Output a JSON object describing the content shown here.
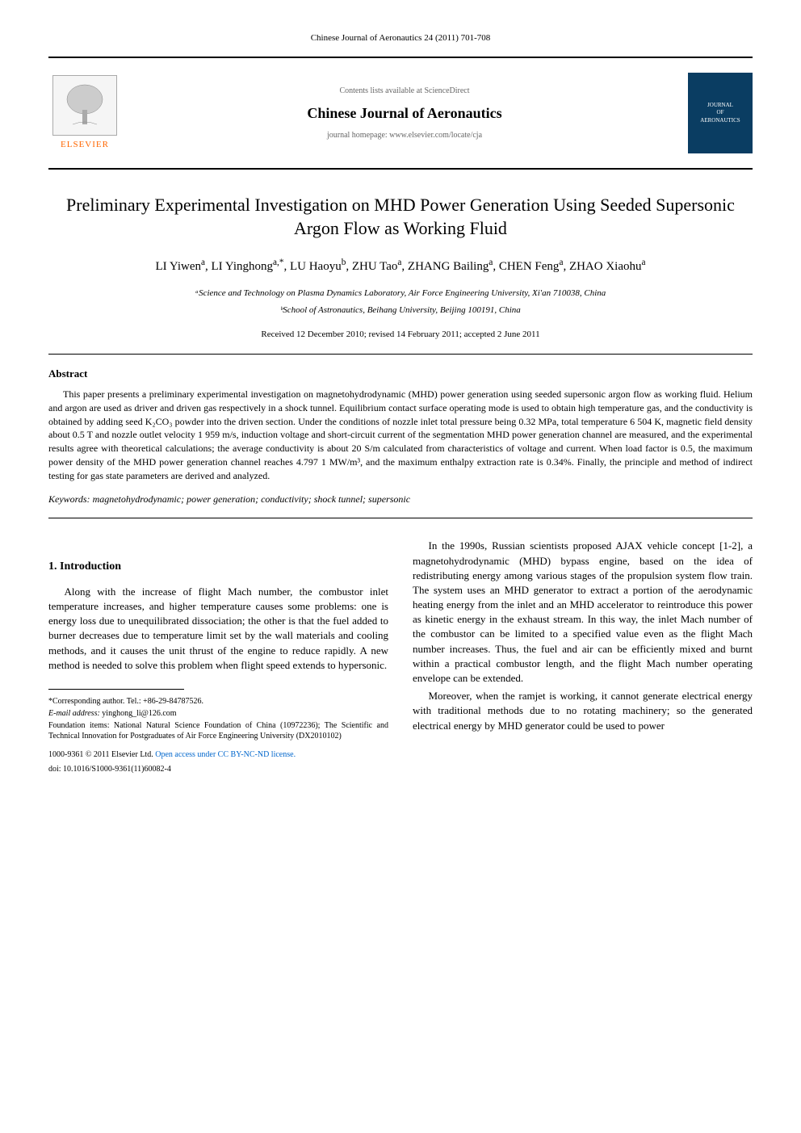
{
  "header": {
    "citation": "Chinese Journal of Aeronautics 24 (2011) 701-708",
    "contents_available": "Contents lists available at ScienceDirect",
    "journal_name": "Chinese Journal of Aeronautics",
    "homepage_label": "journal homepage: www.elsevier.com/locate/cja",
    "elsevier_text": "ELSEVIER",
    "cover_text_top": "JOURNAL",
    "cover_text_mid": "OF",
    "cover_text_bot": "AERONAUTICS"
  },
  "article": {
    "title": "Preliminary Experimental Investigation on MHD Power Generation Using Seeded Supersonic Argon Flow as Working Fluid",
    "authors_html": "LI Yiwen<sup>a</sup>, LI Yinghong<sup>a,*</sup>, LU Haoyu<sup>b</sup>, ZHU Tao<sup>a</sup>, ZHANG Bailing<sup>a</sup>, CHEN Feng<sup>a</sup>, ZHAO Xiaohu<sup>a</sup>",
    "affiliation_a": "ᵃScience and Technology on Plasma Dynamics Laboratory, Air Force Engineering University, Xi'an 710038, China",
    "affiliation_b": "ᵇSchool of Astronautics, Beihang University, Beijing 100191, China",
    "dates": "Received 12 December 2010; revised 14 February 2011; accepted 2 June 2011"
  },
  "abstract": {
    "heading": "Abstract",
    "text": "This paper presents a preliminary experimental investigation on magnetohydrodynamic (MHD) power generation using seeded supersonic argon flow as working fluid. Helium and argon are used as driver and driven gas respectively in a shock tunnel. Equilibrium contact surface operating mode is used to obtain high temperature gas, and the conductivity is obtained by adding seed K₂CO₃ powder into the driven section. Under the conditions of nozzle inlet total pressure being 0.32 MPa, total temperature 6 504 K, magnetic field density about 0.5 T and nozzle outlet velocity 1 959 m/s, induction voltage and short-circuit current of the segmentation MHD power generation channel are measured, and the experimental results agree with theoretical calculations; the average conductivity is about 20 S/m calculated from characteristics of voltage and current. When load factor is 0.5, the maximum power density of the MHD power generation channel reaches 4.797 1 MW/m³, and the maximum enthalpy extraction rate is 0.34%. Finally, the principle and method of indirect testing for gas state parameters are derived and analyzed.",
    "keywords_label": "Keywords:",
    "keywords": "magnetohydrodynamic; power generation; conductivity; shock tunnel; supersonic"
  },
  "body": {
    "section1_heading": "1. Introduction",
    "col1_p1": "Along with the increase of flight Mach number, the combustor inlet temperature increases, and higher temperature causes some problems: one is energy loss due to unequilibrated dissociation; the other is that the fuel added to burner decreases due to temperature limit set by the wall materials and cooling methods, and it causes the unit thrust of the engine to reduce rapidly. A new method is needed to solve this problem when flight speed extends to hypersonic.",
    "col2_p1": "In the 1990s, Russian scientists proposed AJAX vehicle concept [1-2], a magnetohydrodynamic (MHD) bypass engine, based on the idea of redistributing energy among various stages of the propulsion system flow train. The system uses an MHD generator to extract a portion of the aerodynamic heating energy from the inlet and an MHD accelerator to reintroduce this power as kinetic energy in the exhaust stream. In this way, the inlet Mach number of the combustor can be limited to a specified value even as the flight Mach number increases. Thus, the fuel and air can be efficiently mixed and burnt within a practical combustor length, and the flight Mach number operating envelope can be extended.",
    "col2_p2": "Moreover, when the ramjet is working, it cannot generate electrical energy with traditional methods due to no rotating machinery; so the generated electrical energy by MHD generator could be used to power"
  },
  "footnotes": {
    "corresponding": "*Corresponding author. Tel.: +86-29-84787526.",
    "email_label": "E-mail address:",
    "email": "yinghong_li@126.com",
    "foundation": "Foundation items: National Natural Science Foundation of China (10972236); The Scientific and Technical Innovation for Postgraduates of Air Force Engineering University (DX2010102)",
    "copyright": "1000-9361 © 2011 Elsevier Ltd.",
    "open_access": "Open access under CC BY-NC-ND license.",
    "doi": "doi: 10.1016/S1000-9361(11)60082-4"
  }
}
